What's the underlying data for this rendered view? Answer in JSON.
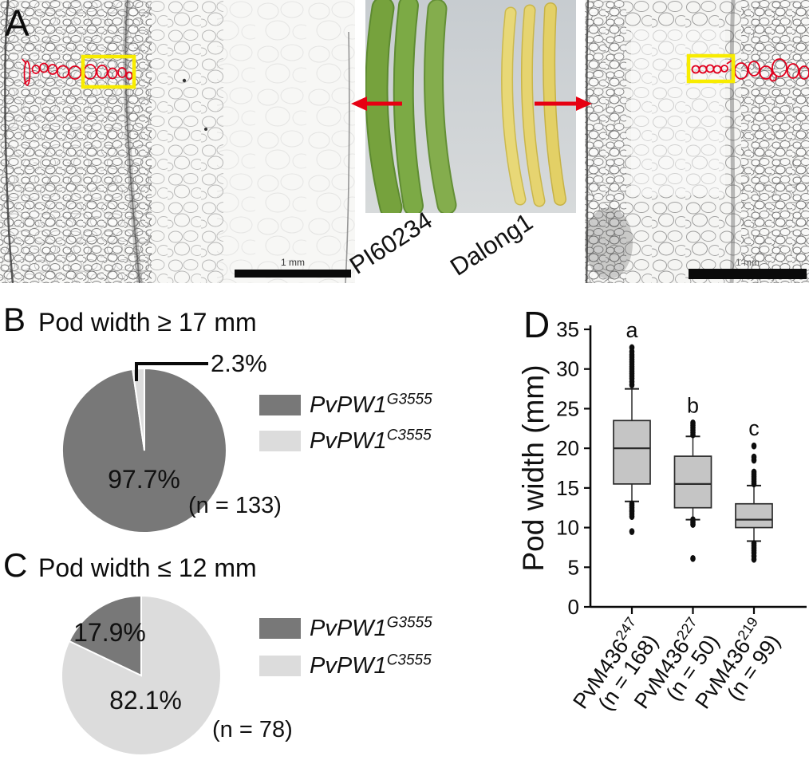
{
  "colors": {
    "pie_dark": "#787878",
    "pie_light": "#dcdcdc",
    "box_fill": "#c5c5c5",
    "annotation_red": "#e1001e",
    "annotation_yellow": "#f8ec00",
    "arrow_red": "#e60012"
  },
  "panel_a": {
    "label": "A",
    "left_micrograph": {
      "scale_label": "1 mm"
    },
    "right_micrograph": {
      "scale_label": "1 mm"
    },
    "cultivar_left": "PI60234",
    "cultivar_right": "Dalong1"
  },
  "panel_b": {
    "label": "B",
    "title": "Pod width ≥ 17 mm",
    "big_label": "97.7%",
    "small_label": "2.3%",
    "n_label": "(n = 133)",
    "legend": [
      {
        "gene": "PvPW1",
        "sup": "G3555",
        "color": "#787878"
      },
      {
        "gene": "PvPW1",
        "sup": "C3555",
        "color": "#dcdcdc"
      }
    ]
  },
  "panel_c": {
    "label": "C",
    "title": "Pod width ≤ 12 mm",
    "dark_label": "17.9%",
    "light_label": "82.1%",
    "n_label": "(n = 78)",
    "legend": [
      {
        "gene": "PvPW1",
        "sup": "G3555",
        "color": "#787878"
      },
      {
        "gene": "PvPW1",
        "sup": "C3555",
        "color": "#dcdcdc"
      }
    ]
  },
  "panel_d": {
    "label": "D",
    "ylabel": "Pod width (mm)"
  },
  "chart_data": [
    {
      "type": "pie",
      "title": "Pod width ≥ 17 mm",
      "n": "(n = 133)",
      "legend_position": "right",
      "slices": [
        {
          "label": "PvPW1 G3555",
          "value": 97.7,
          "text": "97.7%",
          "color": "#787878"
        },
        {
          "label": "PvPW1 C3555",
          "value": 2.3,
          "text": "2.3%",
          "color": "#dcdcdc"
        }
      ]
    },
    {
      "type": "pie",
      "title": "Pod width ≤ 12 mm",
      "n": "(n = 78)",
      "legend_position": "right",
      "slices": [
        {
          "label": "PvPW1 C3555",
          "value": 82.1,
          "text": "82.1%",
          "color": "#dcdcdc"
        },
        {
          "label": "PvPW1 G3555",
          "value": 17.9,
          "text": "17.9%",
          "color": "#787878"
        }
      ]
    },
    {
      "type": "box",
      "ylabel": "Pod width (mm)",
      "ylim": [
        0,
        35
      ],
      "yticks": [
        0,
        5,
        10,
        15,
        20,
        25,
        30,
        35
      ],
      "grid": false,
      "groups": [
        {
          "name": "PvM436",
          "sup": "247",
          "n": "(n = 168)",
          "letter": "a",
          "q1": 15.5,
          "median": 20.0,
          "q3": 23.5,
          "whisker_low": 13.3,
          "whisker_high": 27.5,
          "outliers_high": [
            28.0,
            28.4,
            28.8,
            29.1,
            29.4,
            29.7,
            30.0,
            30.3,
            30.6,
            30.9,
            31.2,
            31.5,
            31.8,
            32.2,
            32.7
          ],
          "outliers_low": [
            13.0,
            12.8,
            12.5,
            12.2,
            12.0,
            11.7,
            11.4,
            9.5
          ]
        },
        {
          "name": "PvM436",
          "sup": "227",
          "n": "(n = 50)",
          "letter": "b",
          "q1": 12.5,
          "median": 15.5,
          "q3": 19.0,
          "whisker_low": 11.0,
          "whisker_high": 21.5,
          "outliers_high": [
            21.7,
            22.0,
            22.3,
            22.6,
            22.9,
            23.2
          ],
          "outliers_low": [
            11.0,
            10.7,
            10.4,
            6.1
          ]
        },
        {
          "name": "PvM436",
          "sup": "219",
          "n": "(n = 99)",
          "letter": "c",
          "q1": 10.0,
          "median": 11.0,
          "q3": 13.0,
          "whisker_low": 8.3,
          "whisker_high": 15.3,
          "outliers_high": [
            15.5,
            15.8,
            16.1,
            16.4,
            16.7,
            17.0,
            18.5,
            18.9,
            20.3
          ],
          "outliers_low": [
            8.0,
            7.7,
            7.4,
            7.1,
            6.8,
            6.4,
            6.0
          ]
        }
      ]
    }
  ]
}
